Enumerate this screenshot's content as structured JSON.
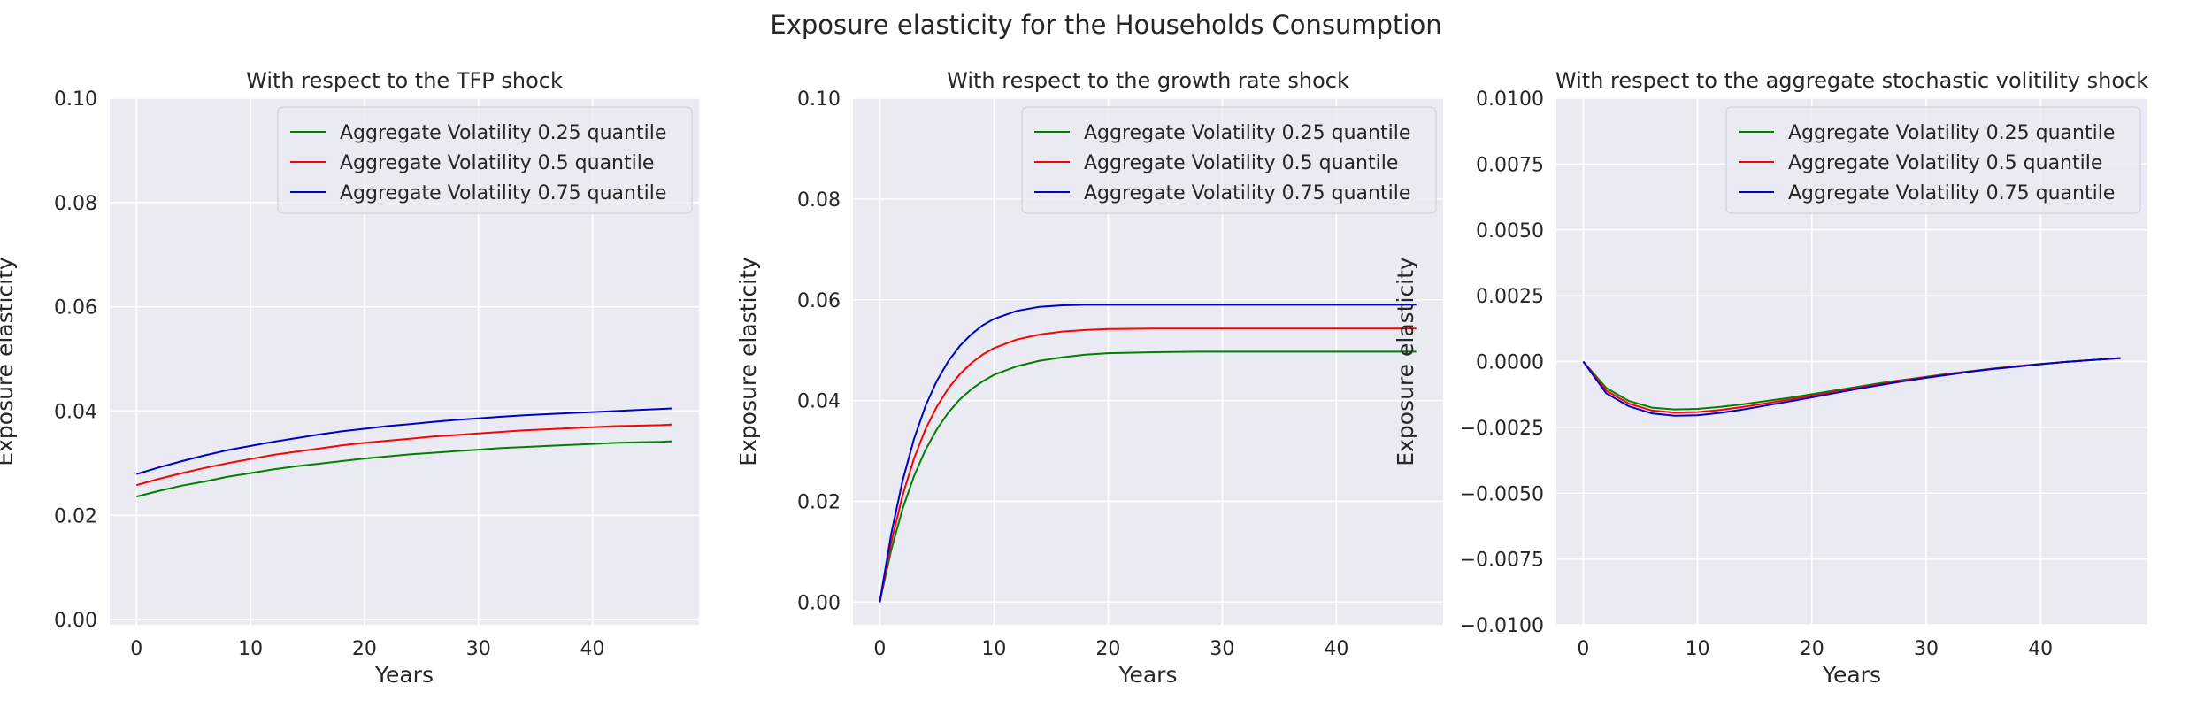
{
  "figure": {
    "title": "Exposure elasticity for the Households Consumption"
  },
  "chart_data": [
    {
      "type": "line",
      "title": "With respect to the TFP shock",
      "xlabel": "Years",
      "ylabel": "Exposure elasticity",
      "xlim": [
        -2.35,
        49.35
      ],
      "ylim": [
        -0.001,
        0.1
      ],
      "xticks": [
        "0",
        "10",
        "20",
        "30",
        "40"
      ],
      "yticks": [
        "0.00",
        "0.02",
        "0.04",
        "0.06",
        "0.08",
        "0.10"
      ],
      "ytick_values": [
        0,
        0.02,
        0.04,
        0.06,
        0.08,
        0.1
      ],
      "grid": true,
      "legend": "top-right",
      "x": [
        0,
        2,
        4,
        6,
        8,
        10,
        12,
        14,
        16,
        18,
        20,
        22,
        24,
        26,
        28,
        30,
        32,
        34,
        36,
        38,
        40,
        42,
        44,
        46,
        47
      ],
      "series": [
        {
          "name": "Aggregate Volatility 0.25 quantile",
          "color": "#008000",
          "values": [
            0.0236,
            0.0247,
            0.0257,
            0.0265,
            0.0274,
            0.0281,
            0.0288,
            0.0294,
            0.0299,
            0.0304,
            0.0309,
            0.0313,
            0.0317,
            0.032,
            0.0323,
            0.0326,
            0.0329,
            0.0331,
            0.0333,
            0.0335,
            0.0337,
            0.0339,
            0.034,
            0.0341,
            0.0342
          ]
        },
        {
          "name": "Aggregate Volatility 0.5 quantile",
          "color": "#ff0000",
          "values": [
            0.0258,
            0.027,
            0.0281,
            0.0291,
            0.03,
            0.0308,
            0.0316,
            0.0322,
            0.0328,
            0.0334,
            0.0339,
            0.0343,
            0.0347,
            0.0351,
            0.0354,
            0.0357,
            0.036,
            0.0363,
            0.0365,
            0.0367,
            0.0369,
            0.0371,
            0.0372,
            0.0373,
            0.0374
          ]
        },
        {
          "name": "Aggregate Volatility 0.75 quantile",
          "color": "#0000cd",
          "values": [
            0.0279,
            0.0292,
            0.0304,
            0.0315,
            0.0325,
            0.0333,
            0.0341,
            0.0348,
            0.0355,
            0.0361,
            0.0366,
            0.0371,
            0.0375,
            0.0379,
            0.0383,
            0.0386,
            0.0389,
            0.0392,
            0.0394,
            0.0396,
            0.0398,
            0.04,
            0.0402,
            0.0404,
            0.0405
          ]
        }
      ]
    },
    {
      "type": "line",
      "title": "With respect to the growth rate shock",
      "xlabel": "Years",
      "ylabel": "Exposure elasticity",
      "xlim": [
        -2.35,
        49.35
      ],
      "ylim": [
        -0.0045,
        0.1
      ],
      "xticks": [
        "0",
        "10",
        "20",
        "30",
        "40"
      ],
      "yticks": [
        "0.00",
        "0.02",
        "0.04",
        "0.06",
        "0.08",
        "0.10"
      ],
      "ytick_values": [
        0,
        0.02,
        0.04,
        0.06,
        0.08,
        0.1
      ],
      "grid": true,
      "legend": "top-right",
      "x": [
        0,
        1,
        2,
        3,
        4,
        5,
        6,
        7,
        8,
        9,
        10,
        12,
        14,
        16,
        18,
        20,
        24,
        28,
        32,
        36,
        40,
        44,
        47
      ],
      "series": [
        {
          "name": "Aggregate Volatility 0.25 quantile",
          "color": "#008000",
          "values": [
            0.0,
            0.0103,
            0.0185,
            0.025,
            0.0302,
            0.0343,
            0.0376,
            0.0402,
            0.0422,
            0.0438,
            0.0451,
            0.0468,
            0.0479,
            0.0486,
            0.0491,
            0.0494,
            0.0496,
            0.0497,
            0.0497,
            0.0497,
            0.0497,
            0.0497,
            0.0497
          ]
        },
        {
          "name": "Aggregate Volatility 0.5 quantile",
          "color": "#ff0000",
          "values": [
            0.0,
            0.0118,
            0.0212,
            0.0285,
            0.0343,
            0.0388,
            0.0424,
            0.0452,
            0.0474,
            0.0491,
            0.0504,
            0.0521,
            0.0531,
            0.0537,
            0.054,
            0.0542,
            0.0543,
            0.0543,
            0.0543,
            0.0543,
            0.0543,
            0.0543,
            0.0543
          ]
        },
        {
          "name": "Aggregate Volatility 0.75 quantile",
          "color": "#0000cd",
          "values": [
            0.0,
            0.0135,
            0.0241,
            0.0324,
            0.0389,
            0.0439,
            0.0478,
            0.0508,
            0.0531,
            0.0549,
            0.0562,
            0.0578,
            0.0586,
            0.0589,
            0.059,
            0.059,
            0.059,
            0.059,
            0.059,
            0.059,
            0.059,
            0.059,
            0.059
          ]
        }
      ]
    },
    {
      "type": "line",
      "title": "With respect to the aggregate stochastic volitility shock",
      "xlabel": "Years",
      "ylabel": "Exposure elasticity",
      "xlim": [
        -2.35,
        49.35
      ],
      "ylim": [
        -0.01,
        0.01
      ],
      "xticks": [
        "0",
        "10",
        "20",
        "30",
        "40"
      ],
      "yticks": [
        "−0.0100",
        "−0.0075",
        "−0.0050",
        "−0.0025",
        "0.0000",
        "0.0025",
        "0.0050",
        "0.0075",
        "0.0100"
      ],
      "ytick_values": [
        -0.01,
        -0.0075,
        -0.005,
        -0.0025,
        0,
        0.0025,
        0.005,
        0.0075,
        0.01
      ],
      "grid": true,
      "legend": "top-right",
      "x": [
        0,
        2,
        4,
        6,
        8,
        10,
        12,
        14,
        16,
        18,
        20,
        22,
        24,
        26,
        28,
        30,
        32,
        34,
        36,
        38,
        40,
        42,
        44,
        46,
        47
      ],
      "series": [
        {
          "name": "Aggregate Volatility 0.25 quantile",
          "color": "#008000",
          "values": [
            0.0,
            -0.001,
            -0.0015,
            -0.00175,
            -0.00182,
            -0.0018,
            -0.00172,
            -0.00162,
            -0.0015,
            -0.00138,
            -0.00124,
            -0.0011,
            -0.00096,
            -0.00082,
            -0.0007,
            -0.00058,
            -0.00046,
            -0.00036,
            -0.00026,
            -0.00017,
            -9e-05,
            -2e-05,
            4e-05,
            0.0001,
            0.00013
          ]
        },
        {
          "name": "Aggregate Volatility 0.5 quantile",
          "color": "#ff0000",
          "values": [
            0.0,
            -0.0011,
            -0.0016,
            -0.00186,
            -0.00194,
            -0.00192,
            -0.00184,
            -0.00172,
            -0.00159,
            -0.00145,
            -0.0013,
            -0.00115,
            -0.001,
            -0.00086,
            -0.00072,
            -0.0006,
            -0.00048,
            -0.00037,
            -0.00027,
            -0.00018,
            -0.0001,
            -2e-05,
            4e-05,
            0.0001,
            0.00013
          ]
        },
        {
          "name": "Aggregate Volatility 0.75 quantile",
          "color": "#0000cd",
          "values": [
            0.0,
            -0.0012,
            -0.0017,
            -0.00197,
            -0.00206,
            -0.00204,
            -0.00195,
            -0.00182,
            -0.00167,
            -0.00152,
            -0.00136,
            -0.0012,
            -0.00104,
            -0.00089,
            -0.00075,
            -0.00062,
            -0.0005,
            -0.00038,
            -0.00028,
            -0.00019,
            -0.0001,
            -2e-05,
            4e-05,
            0.0001,
            0.00013
          ]
        }
      ]
    }
  ]
}
